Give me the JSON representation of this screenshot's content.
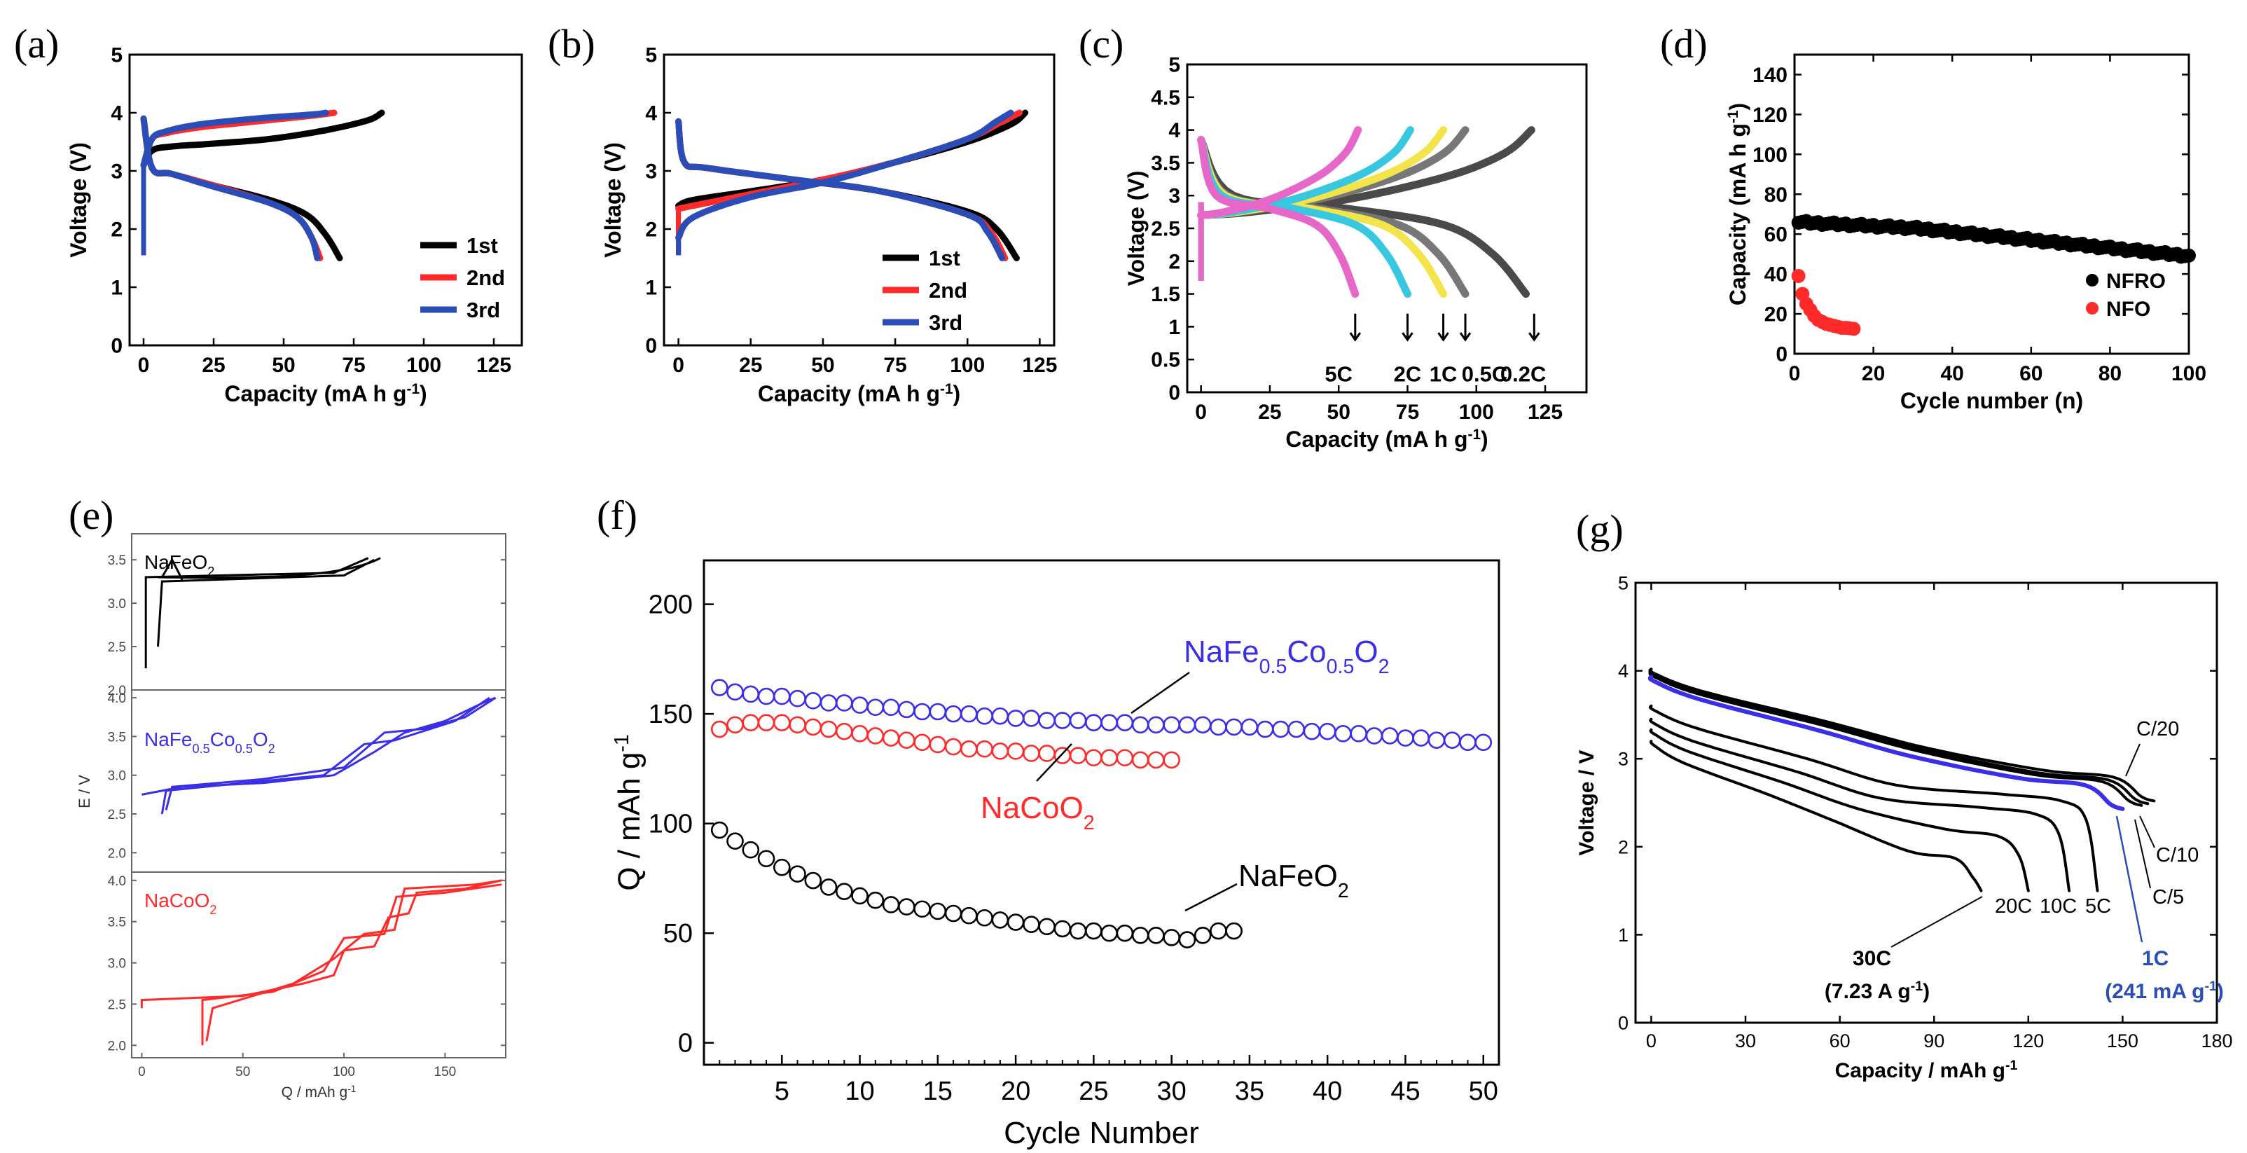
{
  "panel_labels": [
    "(a)",
    "(b)",
    "(c)",
    "(d)",
    "(e)",
    "(f)",
    "(g)"
  ],
  "colors": {
    "black": "#000000",
    "red": "#ff2a2a",
    "blue": "#2a4db8",
    "purple": "#3a2ee8",
    "magenta": "#e667c7",
    "cyan": "#38c7e0",
    "yellow": "#f2e44a",
    "gray": "#777777",
    "dark_gray": "#4a4a4a"
  },
  "chart_data": [
    {
      "id": "a",
      "type": "line",
      "xlabel": "Capacity (mA h g",
      "xlabel_sup": "-1",
      "xlabel_end": ")",
      "ylabel": "Voltage (V)",
      "xlim": [
        -5,
        135
      ],
      "ylim": [
        0,
        5
      ],
      "xticks": [
        "0",
        "25",
        "50",
        "75",
        "100",
        "125"
      ],
      "xtick_values": [
        0,
        25,
        50,
        75,
        100,
        125
      ],
      "yticks": [
        "0",
        "1",
        "2",
        "3",
        "4",
        "5"
      ],
      "ytick_values": [
        0,
        1,
        2,
        3,
        4,
        5
      ],
      "legend": [
        "1st",
        "2nd",
        "3rd"
      ],
      "series": [
        {
          "name": "1st",
          "color": "black",
          "charge": {
            "x": [
              0,
              3,
              10,
              25,
              45,
              65,
              80,
              85
            ],
            "y": [
              3.1,
              3.35,
              3.42,
              3.47,
              3.55,
              3.7,
              3.87,
              4.0
            ]
          },
          "discharge": {
            "x": [
              0,
              3,
              10,
              25,
              45,
              58,
              65,
              70
            ],
            "y": [
              3.9,
              3.05,
              2.95,
              2.75,
              2.5,
              2.25,
              1.9,
              1.5
            ]
          }
        },
        {
          "name": "2nd",
          "color": "red",
          "charge": {
            "x": [
              0,
              3,
              8,
              20,
              40,
              60,
              68
            ],
            "y": [
              3.1,
              3.55,
              3.65,
              3.75,
              3.85,
              3.95,
              4.0
            ]
          },
          "discharge": {
            "x": [
              0,
              3,
              10,
              25,
              45,
              55,
              60,
              63
            ],
            "y": [
              3.9,
              3.05,
              2.95,
              2.75,
              2.45,
              2.2,
              1.85,
              1.5
            ]
          }
        },
        {
          "name": "3rd",
          "color": "blue",
          "charge": {
            "x": [
              0,
              3,
              8,
              20,
              40,
              60,
              65
            ],
            "y": [
              3.1,
              3.55,
              3.68,
              3.8,
              3.9,
              3.97,
              4.0
            ]
          },
          "discharge": {
            "x": [
              0,
              3,
              10,
              25,
              45,
              55,
              60,
              62
            ],
            "y": [
              3.9,
              3.05,
              2.95,
              2.73,
              2.45,
              2.2,
              1.85,
              1.5
            ]
          }
        }
      ]
    },
    {
      "id": "b",
      "type": "line",
      "xlabel": "Capacity (mA h g",
      "xlabel_sup": "-1",
      "xlabel_end": ")",
      "ylabel": "Voltage (V)",
      "xlim": [
        -5,
        130
      ],
      "ylim": [
        0,
        5
      ],
      "xticks": [
        "0",
        "25",
        "50",
        "75",
        "100",
        "125"
      ],
      "xtick_values": [
        0,
        25,
        50,
        75,
        100,
        125
      ],
      "yticks": [
        "0",
        "1",
        "2",
        "3",
        "4",
        "5"
      ],
      "ytick_values": [
        0,
        1,
        2,
        3,
        4,
        5
      ],
      "legend": [
        "1st",
        "2nd",
        "3rd"
      ],
      "series": [
        {
          "name": "1st",
          "color": "black",
          "charge": {
            "x": [
              0,
              5,
              25,
              50,
              75,
              100,
              115,
              120
            ],
            "y": [
              2.4,
              2.5,
              2.65,
              2.85,
              3.15,
              3.5,
              3.8,
              4.0
            ]
          },
          "discharge": {
            "x": [
              0,
              2,
              10,
              40,
              70,
              100,
              110,
              117
            ],
            "y": [
              3.85,
              3.15,
              3.05,
              2.85,
              2.65,
              2.3,
              2.0,
              1.5
            ]
          }
        },
        {
          "name": "2nd",
          "color": "red",
          "charge": {
            "x": [
              0,
              5,
              25,
              50,
              75,
              100,
              112,
              118
            ],
            "y": [
              2.35,
              2.4,
              2.6,
              2.85,
              3.15,
              3.55,
              3.85,
              4.0
            ]
          },
          "discharge": {
            "x": [
              0,
              2,
              10,
              40,
              70,
              100,
              108,
              113
            ],
            "y": [
              3.85,
              3.15,
              3.05,
              2.85,
              2.65,
              2.25,
              1.95,
              1.5
            ]
          }
        },
        {
          "name": "3rd",
          "color": "blue",
          "charge": {
            "x": [
              0,
              5,
              25,
              50,
              75,
              100,
              110,
              115
            ],
            "y": [
              1.85,
              2.2,
              2.55,
              2.8,
              3.15,
              3.55,
              3.85,
              4.0
            ]
          },
          "discharge": {
            "x": [
              0,
              2,
              10,
              40,
              70,
              100,
              107,
              112
            ],
            "y": [
              3.85,
              3.15,
              3.05,
              2.85,
              2.65,
              2.25,
              1.95,
              1.5
            ]
          }
        }
      ]
    },
    {
      "id": "c",
      "type": "line",
      "xlabel": "Capacity (mA h g",
      "xlabel_sup": "-1",
      "xlabel_end": ")",
      "ylabel": "Voltage (V)",
      "xlim": [
        -5,
        140
      ],
      "ylim": [
        0,
        5
      ],
      "xticks": [
        "0",
        "25",
        "50",
        "75",
        "100",
        "125"
      ],
      "xtick_values": [
        0,
        25,
        50,
        75,
        100,
        125
      ],
      "yticks": [
        "0",
        "0.5",
        "1",
        "1.5",
        "2",
        "2.5",
        "3",
        "3.5",
        "4",
        "4.5",
        "5"
      ],
      "ytick_values": [
        0,
        0.5,
        1,
        1.5,
        2,
        2.5,
        3,
        3.5,
        4,
        4.5,
        5
      ],
      "rate_labels": [
        "5C",
        "2C",
        "1C",
        "0.5C",
        "0.2C"
      ],
      "series": [
        {
          "name": "0.2C",
          "color": "dark_gray",
          "charge_end": 120,
          "discharge_end": 118
        },
        {
          "name": "0.5C",
          "color": "gray",
          "charge_end": 96,
          "discharge_end": 96
        },
        {
          "name": "1C",
          "color": "yellow",
          "charge_end": 88,
          "discharge_end": 88
        },
        {
          "name": "2C",
          "color": "cyan",
          "charge_end": 76,
          "discharge_end": 75
        },
        {
          "name": "5C",
          "color": "magenta",
          "charge_end": 57,
          "discharge_end": 56
        }
      ]
    },
    {
      "id": "d",
      "type": "scatter",
      "xlabel": "Cycle number (n)",
      "ylabel": "Capacity (mA h g",
      "ylabel_sup": "-1",
      "ylabel_end": ")",
      "xlim": [
        0,
        100
      ],
      "ylim": [
        0,
        150
      ],
      "xticks": [
        "0",
        "20",
        "40",
        "60",
        "80",
        "100"
      ],
      "xtick_values": [
        0,
        20,
        40,
        60,
        80,
        100
      ],
      "yticks": [
        "0",
        "20",
        "40",
        "60",
        "80",
        "100",
        "120",
        "140"
      ],
      "ytick_values": [
        0,
        20,
        40,
        60,
        80,
        100,
        120,
        140
      ],
      "legend": [
        "NFRO",
        "NFO"
      ],
      "series": [
        {
          "name": "NFRO",
          "color": "black",
          "x_start": 1,
          "x_end": 100,
          "y_start": 66,
          "y_mid": 63,
          "y_end": 49
        },
        {
          "name": "NFO",
          "color": "red",
          "x": [
            1,
            2,
            3,
            4,
            5,
            6,
            7,
            8,
            9,
            10,
            11,
            12,
            13,
            14,
            15
          ],
          "y": [
            39,
            30,
            25,
            22,
            19,
            17,
            16,
            15,
            14.5,
            14,
            13.5,
            13,
            13,
            12.8,
            12.5
          ]
        }
      ]
    },
    {
      "id": "e",
      "type": "line",
      "xlabel": "Q / mAh g",
      "xlabel_sup": "-1",
      "ylabel": "E  /  V",
      "xlim": [
        -5,
        180
      ],
      "xticks": [
        "0",
        "50",
        "100",
        "150"
      ],
      "xtick_values": [
        0,
        50,
        100,
        150
      ],
      "subplots": [
        {
          "name": "NaFeO",
          "sub": "2",
          "color": "black",
          "ylim": [
            2.0,
            3.8
          ],
          "yticks": [
            "2.0",
            "2.5",
            "3.0",
            "3.5"
          ],
          "ytick_values": [
            2.0,
            2.5,
            3.0,
            3.5
          ]
        },
        {
          "name_parts": [
            "NaFe",
            "0.5",
            "Co",
            "0.5",
            "O",
            "2"
          ],
          "color": "purple",
          "ylim": [
            1.75,
            4.1
          ],
          "yticks": [
            "2.0",
            "2.5",
            "3.0",
            "3.5",
            "4.0"
          ],
          "ytick_values": [
            2.0,
            2.5,
            3.0,
            3.5,
            4.0
          ]
        },
        {
          "name": "NaCoO",
          "sub": "2",
          "color": "red",
          "ylim": [
            1.85,
            4.1
          ],
          "yticks": [
            "2.0",
            "2.5",
            "3.0",
            "3.5",
            "4.0"
          ],
          "ytick_values": [
            2.0,
            2.5,
            3.0,
            3.5,
            4.0
          ]
        }
      ]
    },
    {
      "id": "f",
      "type": "scatter",
      "xlabel": "Cycle Number",
      "ylabel": "Q / mAh g",
      "ylabel_sup": "-1",
      "xlim": [
        0,
        51
      ],
      "ylim": [
        -10,
        220
      ],
      "xticks": [
        "5",
        "10",
        "15",
        "20",
        "25",
        "30",
        "35",
        "40",
        "45",
        "50"
      ],
      "xtick_values": [
        5,
        10,
        15,
        20,
        25,
        30,
        35,
        40,
        45,
        50
      ],
      "yticks": [
        "0",
        "50",
        "100",
        "150",
        "200"
      ],
      "ytick_values": [
        0,
        50,
        100,
        150,
        200
      ],
      "series": [
        {
          "name": "NaFe0.5Co0.5O2",
          "color": "purple",
          "x": [
            1,
            2,
            3,
            4,
            5,
            6,
            7,
            8,
            9,
            10,
            11,
            12,
            13,
            14,
            15,
            16,
            17,
            18,
            19,
            20,
            21,
            22,
            23,
            24,
            25,
            26,
            27,
            28,
            29,
            30,
            31,
            32,
            33,
            34,
            35,
            36,
            37,
            38,
            39,
            40,
            41,
            42,
            43,
            44,
            45,
            46,
            47,
            48,
            49,
            50
          ],
          "y": [
            162,
            160,
            159,
            158,
            158,
            157,
            156,
            155,
            155,
            154,
            153,
            153,
            152,
            151,
            151,
            150,
            150,
            149,
            149,
            148,
            148,
            147,
            147,
            147,
            146,
            146,
            146,
            145,
            145,
            145,
            145,
            145,
            144,
            144,
            144,
            143,
            143,
            143,
            142,
            142,
            141,
            141,
            140,
            140,
            139,
            139,
            138,
            138,
            137,
            137
          ]
        },
        {
          "name": "NaCoO2",
          "color": "red",
          "x": [
            1,
            2,
            3,
            4,
            5,
            6,
            7,
            8,
            9,
            10,
            11,
            12,
            13,
            14,
            15,
            16,
            17,
            18,
            19,
            20,
            21,
            22,
            23,
            24,
            25,
            26,
            27,
            28,
            29,
            30
          ],
          "y": [
            143,
            145,
            146,
            146,
            146,
            145,
            144,
            143,
            142,
            141,
            140,
            139,
            138,
            137,
            136,
            135,
            134,
            134,
            133,
            133,
            132,
            132,
            131,
            131,
            130,
            130,
            130,
            129,
            129,
            129
          ]
        },
        {
          "name": "NaFeO2",
          "color": "black",
          "x": [
            1,
            2,
            3,
            4,
            5,
            6,
            7,
            8,
            9,
            10,
            11,
            12,
            13,
            14,
            15,
            16,
            17,
            18,
            19,
            20,
            21,
            22,
            23,
            24,
            25,
            26,
            27,
            28,
            29,
            30,
            31,
            32,
            33,
            34
          ],
          "y": [
            97,
            92,
            88,
            84,
            80,
            77,
            74,
            71,
            69,
            67,
            65,
            63,
            62,
            61,
            60,
            59,
            58,
            57,
            56,
            55,
            54,
            53,
            52,
            51,
            51,
            50,
            50,
            49,
            49,
            48,
            47,
            49,
            51,
            51
          ]
        }
      ],
      "labels": {
        "blue": {
          "base": "NaFe",
          "s1": "0.5",
          "mid": "Co",
          "s2": "0.5",
          "o": "O",
          "s3": "2"
        },
        "red": {
          "base": "NaCoO",
          "s": "2"
        },
        "black": {
          "base": "NaFeO",
          "s": "2"
        }
      }
    },
    {
      "id": "g",
      "type": "line",
      "xlabel": "Capacity / mAh g",
      "xlabel_sup": "-1",
      "ylabel": "Voltage / V",
      "xlim": [
        -5,
        180
      ],
      "ylim": [
        0,
        5
      ],
      "xticks": [
        "0",
        "30",
        "60",
        "90",
        "120",
        "150",
        "180"
      ],
      "xtick_values": [
        0,
        30,
        60,
        90,
        120,
        150,
        180
      ],
      "yticks": [
        "0",
        "1",
        "2",
        "3",
        "4",
        "5"
      ],
      "ytick_values": [
        0,
        1,
        2,
        3,
        4,
        5
      ],
      "rate_labels": {
        "c20": "C/20",
        "c10": "C/10",
        "c5": "C/5",
        "c1": "1C",
        "c1_sub": "(241 mA g",
        "c1_sup": "-1",
        "c1_end": ")",
        "c30": "30C",
        "c30_sub": "(7.23 A g",
        "c30_sup": "-1",
        "c30_end": ")",
        "c20c": "20C",
        "c10c": "10C",
        "c5c": "5C"
      },
      "series": [
        {
          "name": "C/20",
          "color": "black",
          "end": 160,
          "plateau": 2.87,
          "top": 3.97
        },
        {
          "name": "C/10",
          "color": "black",
          "end": 158,
          "plateau": 2.84,
          "top": 3.95
        },
        {
          "name": "C/5",
          "color": "black",
          "end": 156,
          "plateau": 2.82,
          "top": 3.93
        },
        {
          "name": "1C",
          "color": "purple",
          "end": 150,
          "plateau": 2.78,
          "top": 3.88
        },
        {
          "name": "5C",
          "color": "black",
          "end": 142,
          "plateau": 2.6,
          "top": 3.55
        },
        {
          "name": "10C",
          "color": "black",
          "end": 133,
          "plateau": 2.45,
          "top": 3.4
        },
        {
          "name": "20C",
          "color": "black",
          "end": 120,
          "plateau": 2.2,
          "top": 3.28
        },
        {
          "name": "30C",
          "color": "black",
          "end": 105,
          "plateau": 1.95,
          "top": 3.15
        }
      ]
    }
  ]
}
